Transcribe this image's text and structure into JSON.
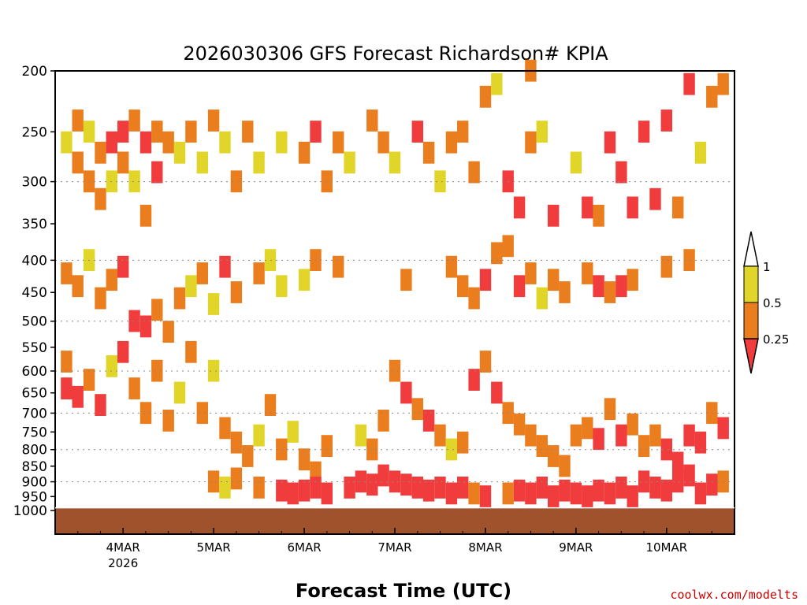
{
  "credit": "coolwx.com/modelts",
  "colors": {
    "low": "#f03c3c",
    "mid": "#ea7d1d",
    "high": "#e2d52a",
    "ground": "#a0522d"
  },
  "chart_data": {
    "type": "heatmap",
    "title": "2026030306 GFS Forecast Richardson# KPIA",
    "xlabel": "Forecast Time (UTC)",
    "ylabel": "",
    "x_start": "2026-03-03 06 UTC",
    "x_end": "2026-03-10 18 UTC",
    "x_ticks": [
      {
        "label": "4MAR",
        "sublabel": "2026",
        "hours": 18
      },
      {
        "label": "5MAR",
        "sublabel": "",
        "hours": 42
      },
      {
        "label": "6MAR",
        "sublabel": "",
        "hours": 66
      },
      {
        "label": "7MAR",
        "sublabel": "",
        "hours": 90
      },
      {
        "label": "8MAR",
        "sublabel": "",
        "hours": 114
      },
      {
        "label": "9MAR",
        "sublabel": "",
        "hours": 138
      },
      {
        "label": "10MAR",
        "sublabel": "",
        "hours": 162
      }
    ],
    "y_ticks": [
      200,
      250,
      300,
      350,
      400,
      450,
      500,
      550,
      600,
      650,
      700,
      750,
      800,
      850,
      900,
      950,
      1000
    ],
    "y_range_hpa": [
      200,
      1000
    ],
    "y_scale": "log pressure",
    "gridlines_hpa": [
      300,
      400,
      500,
      600,
      700,
      800,
      900
    ],
    "legend": {
      "position": "right",
      "labels": [
        "1",
        "0.5",
        "0.25"
      ],
      "bins": [
        {
          "range": ">1",
          "color": "#ffffff"
        },
        {
          "range": "0.5-1",
          "color": "#e2d52a"
        },
        {
          "range": "0.25-0.5",
          "color": "#ea7d1d"
        },
        {
          "range": "<0.25",
          "color": "#f03c3c"
        }
      ]
    },
    "surface_pressure_hpa": 990,
    "cells": [
      [
        3,
        260,
        2
      ],
      [
        6,
        240,
        1
      ],
      [
        6,
        280,
        1
      ],
      [
        9,
        300,
        1
      ],
      [
        9,
        250,
        2
      ],
      [
        12,
        320,
        1
      ],
      [
        12,
        270,
        1
      ],
      [
        15,
        260,
        0
      ],
      [
        15,
        300,
        2
      ],
      [
        18,
        250,
        0
      ],
      [
        18,
        280,
        1
      ],
      [
        21,
        240,
        1
      ],
      [
        21,
        300,
        2
      ],
      [
        24,
        260,
        0
      ],
      [
        24,
        340,
        1
      ],
      [
        27,
        250,
        1
      ],
      [
        27,
        290,
        0
      ],
      [
        30,
        260,
        1
      ],
      [
        33,
        270,
        2
      ],
      [
        36,
        250,
        1
      ],
      [
        39,
        280,
        2
      ],
      [
        42,
        240,
        1
      ],
      [
        45,
        260,
        2
      ],
      [
        48,
        300,
        1
      ],
      [
        51,
        250,
        1
      ],
      [
        54,
        280,
        2
      ],
      [
        60,
        260,
        2
      ],
      [
        66,
        270,
        1
      ],
      [
        69,
        250,
        0
      ],
      [
        72,
        300,
        1
      ],
      [
        75,
        260,
        1
      ],
      [
        78,
        280,
        2
      ],
      [
        84,
        240,
        1
      ],
      [
        87,
        260,
        1
      ],
      [
        90,
        280,
        2
      ],
      [
        96,
        250,
        0
      ],
      [
        99,
        270,
        1
      ],
      [
        102,
        300,
        2
      ],
      [
        105,
        260,
        1
      ],
      [
        108,
        250,
        1
      ],
      [
        111,
        290,
        1
      ],
      [
        114,
        220,
        1
      ],
      [
        117,
        210,
        2
      ],
      [
        120,
        300,
        0
      ],
      [
        123,
        330,
        0
      ],
      [
        126,
        200,
        1
      ],
      [
        126,
        260,
        1
      ],
      [
        129,
        250,
        2
      ],
      [
        132,
        340,
        0
      ],
      [
        138,
        280,
        2
      ],
      [
        141,
        330,
        0
      ],
      [
        144,
        340,
        1
      ],
      [
        147,
        260,
        0
      ],
      [
        150,
        290,
        0
      ],
      [
        153,
        330,
        0
      ],
      [
        156,
        250,
        0
      ],
      [
        159,
        320,
        0
      ],
      [
        162,
        240,
        0
      ],
      [
        165,
        330,
        1
      ],
      [
        168,
        210,
        0
      ],
      [
        171,
        270,
        2
      ],
      [
        174,
        220,
        1
      ],
      [
        177,
        210,
        1
      ],
      [
        3,
        420,
        1
      ],
      [
        6,
        440,
        1
      ],
      [
        9,
        400,
        2
      ],
      [
        12,
        460,
        1
      ],
      [
        15,
        430,
        1
      ],
      [
        18,
        410,
        0
      ],
      [
        21,
        500,
        0
      ],
      [
        24,
        510,
        0
      ],
      [
        27,
        480,
        1
      ],
      [
        30,
        520,
        1
      ],
      [
        33,
        460,
        1
      ],
      [
        36,
        440,
        2
      ],
      [
        39,
        420,
        1
      ],
      [
        42,
        470,
        2
      ],
      [
        45,
        410,
        0
      ],
      [
        48,
        450,
        1
      ],
      [
        54,
        420,
        1
      ],
      [
        57,
        400,
        2
      ],
      [
        60,
        440,
        2
      ],
      [
        66,
        430,
        2
      ],
      [
        69,
        400,
        1
      ],
      [
        75,
        410,
        1
      ],
      [
        93,
        430,
        1
      ],
      [
        105,
        410,
        1
      ],
      [
        108,
        440,
        1
      ],
      [
        111,
        460,
        1
      ],
      [
        114,
        430,
        0
      ],
      [
        117,
        390,
        1
      ],
      [
        120,
        380,
        1
      ],
      [
        123,
        440,
        0
      ],
      [
        126,
        420,
        1
      ],
      [
        129,
        460,
        2
      ],
      [
        132,
        430,
        1
      ],
      [
        135,
        450,
        1
      ],
      [
        141,
        420,
        1
      ],
      [
        144,
        440,
        0
      ],
      [
        147,
        450,
        1
      ],
      [
        150,
        440,
        0
      ],
      [
        153,
        430,
        1
      ],
      [
        162,
        410,
        1
      ],
      [
        168,
        400,
        1
      ],
      [
        3,
        580,
        1
      ],
      [
        3,
        640,
        0
      ],
      [
        6,
        660,
        0
      ],
      [
        9,
        620,
        1
      ],
      [
        12,
        680,
        0
      ],
      [
        15,
        590,
        2
      ],
      [
        18,
        560,
        0
      ],
      [
        21,
        640,
        1
      ],
      [
        24,
        700,
        1
      ],
      [
        27,
        600,
        1
      ],
      [
        30,
        720,
        1
      ],
      [
        33,
        650,
        2
      ],
      [
        36,
        560,
        1
      ],
      [
        39,
        700,
        1
      ],
      [
        42,
        600,
        2
      ],
      [
        45,
        740,
        1
      ],
      [
        48,
        780,
        1
      ],
      [
        51,
        820,
        1
      ],
      [
        54,
        760,
        2
      ],
      [
        57,
        680,
        1
      ],
      [
        60,
        800,
        1
      ],
      [
        63,
        750,
        2
      ],
      [
        66,
        830,
        1
      ],
      [
        69,
        870,
        1
      ],
      [
        72,
        790,
        1
      ],
      [
        81,
        760,
        2
      ],
      [
        84,
        800,
        1
      ],
      [
        87,
        720,
        1
      ],
      [
        90,
        600,
        1
      ],
      [
        93,
        650,
        0
      ],
      [
        96,
        690,
        1
      ],
      [
        99,
        720,
        0
      ],
      [
        102,
        760,
        1
      ],
      [
        105,
        800,
        2
      ],
      [
        108,
        780,
        1
      ],
      [
        111,
        620,
        0
      ],
      [
        114,
        580,
        1
      ],
      [
        117,
        650,
        0
      ],
      [
        120,
        700,
        1
      ],
      [
        123,
        730,
        1
      ],
      [
        126,
        760,
        1
      ],
      [
        129,
        790,
        1
      ],
      [
        132,
        820,
        1
      ],
      [
        135,
        850,
        1
      ],
      [
        138,
        760,
        1
      ],
      [
        141,
        740,
        1
      ],
      [
        144,
        770,
        0
      ],
      [
        147,
        690,
        1
      ],
      [
        150,
        760,
        0
      ],
      [
        153,
        730,
        1
      ],
      [
        156,
        790,
        1
      ],
      [
        159,
        760,
        1
      ],
      [
        162,
        800,
        0
      ],
      [
        165,
        840,
        0
      ],
      [
        168,
        760,
        0
      ],
      [
        171,
        780,
        0
      ],
      [
        174,
        700,
        1
      ],
      [
        177,
        740,
        0
      ],
      [
        42,
        900,
        1
      ],
      [
        45,
        920,
        2
      ],
      [
        48,
        890,
        1
      ],
      [
        54,
        920,
        1
      ],
      [
        60,
        930,
        0
      ],
      [
        63,
        940,
        0
      ],
      [
        66,
        930,
        0
      ],
      [
        69,
        920,
        0
      ],
      [
        72,
        940,
        0
      ],
      [
        78,
        920,
        0
      ],
      [
        81,
        900,
        0
      ],
      [
        84,
        910,
        0
      ],
      [
        87,
        880,
        0
      ],
      [
        90,
        900,
        0
      ],
      [
        93,
        910,
        0
      ],
      [
        96,
        920,
        0
      ],
      [
        99,
        930,
        0
      ],
      [
        102,
        920,
        0
      ],
      [
        105,
        940,
        0
      ],
      [
        108,
        920,
        0
      ],
      [
        111,
        940,
        1
      ],
      [
        114,
        950,
        0
      ],
      [
        120,
        940,
        1
      ],
      [
        123,
        930,
        0
      ],
      [
        126,
        940,
        0
      ],
      [
        129,
        920,
        0
      ],
      [
        132,
        950,
        0
      ],
      [
        135,
        930,
        0
      ],
      [
        138,
        940,
        0
      ],
      [
        141,
        950,
        0
      ],
      [
        144,
        930,
        0
      ],
      [
        147,
        940,
        0
      ],
      [
        150,
        920,
        0
      ],
      [
        153,
        950,
        0
      ],
      [
        156,
        900,
        0
      ],
      [
        159,
        920,
        0
      ],
      [
        162,
        930,
        0
      ],
      [
        165,
        900,
        0
      ],
      [
        168,
        880,
        0
      ],
      [
        171,
        940,
        0
      ],
      [
        174,
        910,
        0
      ],
      [
        177,
        900,
        1
      ]
    ]
  }
}
